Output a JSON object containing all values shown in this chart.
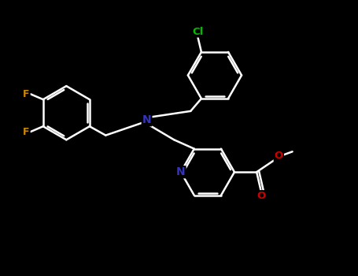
{
  "background": "#000000",
  "bond_color": "#ffffff",
  "atom_colors": {
    "F": "#cc8800",
    "Cl": "#00bb00",
    "N": "#3333bb",
    "O": "#cc0000",
    "C": "#ffffff"
  }
}
